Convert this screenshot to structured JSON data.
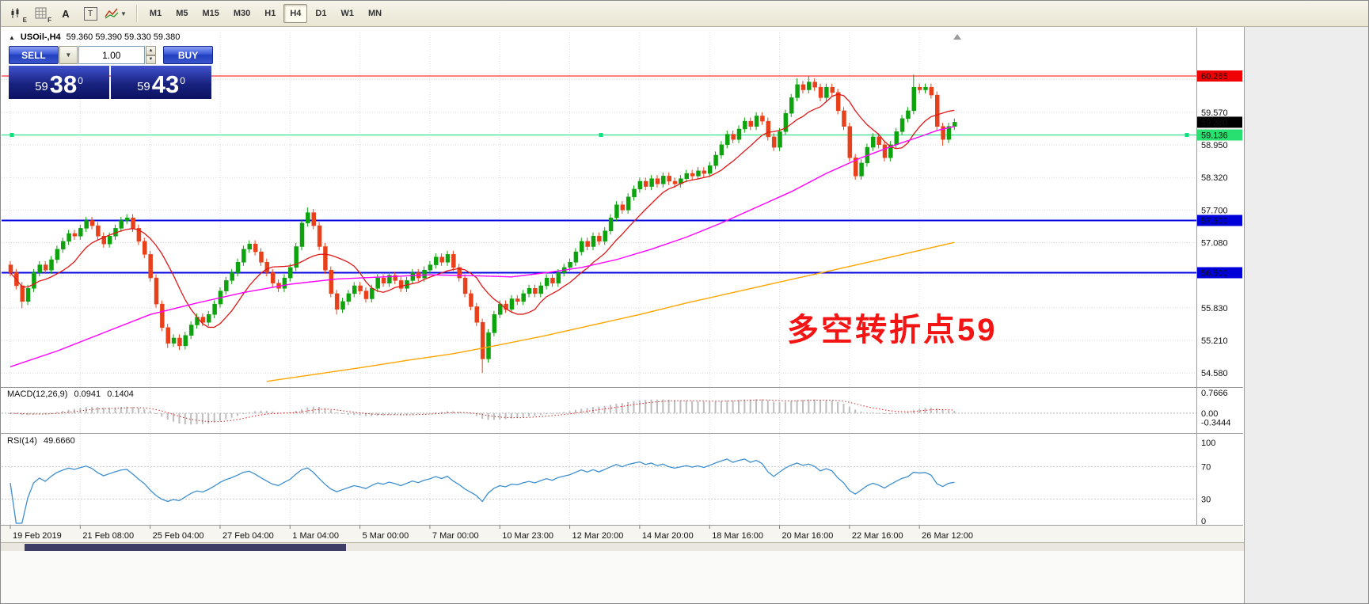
{
  "toolbar": {
    "icon_badges": {
      "e": "E",
      "f": "F",
      "a": "A",
      "t": "T"
    },
    "timeframes": [
      "M1",
      "M5",
      "M15",
      "M30",
      "H1",
      "H4",
      "D1",
      "W1",
      "MN"
    ],
    "active_timeframe": "H4"
  },
  "symbol_bar": {
    "symbol": "USOil-,H4",
    "ohlc": "59.360 59.390 59.330 59.380"
  },
  "trade_panel": {
    "sell_label": "SELL",
    "buy_label": "BUY",
    "volume": "1.00",
    "sell_price_small": "59",
    "sell_price_big": "38",
    "sell_price_sup": "0",
    "buy_price_small": "59",
    "buy_price_big": "43",
    "buy_price_sup": "0"
  },
  "annotation": {
    "text": "多空转折点59",
    "color": "#f31414"
  },
  "indicator_labels": {
    "macd_title": "MACD(12,26,9)",
    "macd_main": "0.0941",
    "macd_signal": "0.1404",
    "rsi_title": "RSI(14)",
    "rsi_value": "49.6660"
  },
  "chart_data": {
    "type": "candlestick",
    "symbol": "USOil-",
    "timeframe": "H4",
    "current_ohlc": {
      "open": 59.36,
      "high": 59.39,
      "low": 59.33,
      "close": 59.38
    },
    "candle_up": "#0da30d",
    "candle_down": "#e8401a",
    "y_axis_ticks": [
      {
        "label": "59.570",
        "value": 59.57
      },
      {
        "label": "58.950",
        "value": 58.946
      },
      {
        "label": "58.320",
        "value": 58.322
      },
      {
        "label": "57.700",
        "value": 57.699
      },
      {
        "label": "57.080",
        "value": 57.075
      },
      {
        "label": "55.830",
        "value": 55.828
      },
      {
        "label": "55.210",
        "value": 55.204
      },
      {
        "label": "54.580",
        "value": 54.58
      }
    ],
    "grid_values": [
      60.194,
      59.57,
      58.946,
      58.322,
      57.699,
      57.075,
      56.451,
      55.828,
      55.204,
      54.58
    ],
    "price_tags": [
      {
        "label": "60.265",
        "value": 60.265,
        "bg": "#f00000",
        "fg": "#ffffff"
      },
      {
        "label": "59.380",
        "value": 59.38,
        "bg": "#000000",
        "fg": "#ffffff"
      },
      {
        "label": "59.136",
        "value": 59.136,
        "bg": "#28e070",
        "fg": "#043a1c"
      },
      {
        "label": "57.500",
        "value": 57.5,
        "bg": "#0000d8",
        "fg": "#ffffff"
      },
      {
        "label": "56.500",
        "value": 56.5,
        "bg": "#0000d8",
        "fg": "#ffffff"
      }
    ],
    "levels": [
      {
        "value": 60.265,
        "color": "#ff0000",
        "width": 1,
        "selected": false
      },
      {
        "value": 59.136,
        "color": "#0be27e",
        "width": 1,
        "selected": true
      },
      {
        "value": 57.5,
        "color": "#0000e0",
        "width": 2,
        "selected": false
      },
      {
        "value": 56.5,
        "color": "#0000e0",
        "width": 2,
        "selected": false
      }
    ],
    "x_labels": [
      {
        "i": 0,
        "label": "19 Feb 2019"
      },
      {
        "i": 12,
        "label": "21 Feb 08:00"
      },
      {
        "i": 24,
        "label": "25 Feb 04:00"
      },
      {
        "i": 36,
        "label": "27 Feb 04:00"
      },
      {
        "i": 48,
        "label": "1 Mar 04:00"
      },
      {
        "i": 60,
        "label": "5 Mar 00:00"
      },
      {
        "i": 72,
        "label": "7 Mar 00:00"
      },
      {
        "i": 84,
        "label": "10 Mar 23:00"
      },
      {
        "i": 96,
        "label": "12 Mar 20:00"
      },
      {
        "i": 108,
        "label": "14 Mar 20:00"
      },
      {
        "i": 120,
        "label": "18 Mar 16:00"
      },
      {
        "i": 132,
        "label": "20 Mar 16:00"
      },
      {
        "i": 144,
        "label": "22 Mar 16:00"
      },
      {
        "i": 156,
        "label": "26 Mar 12:00"
      }
    ],
    "first_open": 56.65,
    "wick_margin": 0.07,
    "closes": [
      56.5,
      56.25,
      55.95,
      56.2,
      56.5,
      56.65,
      56.55,
      56.75,
      56.95,
      57.1,
      57.25,
      57.2,
      57.35,
      57.5,
      57.4,
      57.2,
      57.05,
      57.2,
      57.35,
      57.5,
      57.55,
      57.35,
      57.1,
      56.85,
      56.4,
      55.9,
      55.45,
      55.15,
      55.25,
      55.1,
      55.3,
      55.5,
      55.65,
      55.55,
      55.7,
      55.9,
      56.15,
      56.35,
      56.5,
      56.7,
      56.95,
      57.05,
      56.9,
      56.7,
      56.5,
      56.3,
      56.2,
      56.4,
      56.6,
      57.0,
      57.45,
      57.65,
      57.4,
      57.0,
      56.55,
      56.1,
      55.8,
      55.95,
      56.1,
      56.25,
      56.15,
      56.0,
      56.2,
      56.4,
      56.3,
      56.45,
      56.35,
      56.2,
      56.35,
      56.5,
      56.4,
      56.55,
      56.65,
      56.8,
      56.7,
      56.85,
      56.6,
      56.4,
      56.1,
      55.85,
      55.55,
      54.85,
      55.35,
      55.7,
      55.9,
      55.8,
      56.0,
      55.95,
      56.1,
      56.2,
      56.1,
      56.25,
      56.4,
      56.3,
      56.5,
      56.6,
      56.7,
      56.9,
      57.1,
      57.0,
      57.2,
      57.1,
      57.3,
      57.55,
      57.8,
      57.7,
      57.95,
      58.1,
      58.25,
      58.15,
      58.3,
      58.2,
      58.35,
      58.25,
      58.2,
      58.3,
      58.4,
      58.35,
      58.45,
      58.4,
      58.55,
      58.75,
      58.95,
      59.15,
      59.05,
      59.25,
      59.4,
      59.3,
      59.5,
      59.4,
      59.1,
      58.9,
      59.2,
      59.55,
      59.85,
      60.1,
      60.0,
      60.15,
      60.05,
      59.85,
      60.05,
      59.95,
      59.6,
      59.3,
      58.7,
      58.35,
      58.6,
      58.9,
      59.1,
      58.95,
      58.7,
      58.95,
      59.2,
      59.45,
      59.6,
      60.05,
      60.0,
      60.05,
      59.9,
      59.3,
      59.05,
      59.3,
      59.38
    ],
    "wick_overrides": {
      "2": {
        "low": 55.82
      },
      "20": {
        "high": 57.62
      },
      "27": {
        "low": 55.06
      },
      "29": {
        "low": 55.02
      },
      "51": {
        "high": 57.75
      },
      "56": {
        "low": 55.7
      },
      "81": {
        "low": 54.58
      },
      "135": {
        "high": 60.22
      },
      "137": {
        "high": 60.26
      },
      "155": {
        "high": 60.29
      },
      "160": {
        "low": 58.93
      }
    },
    "ma_fast": {
      "period": 10,
      "color": "#e01818"
    },
    "ma_mid": {
      "color": "#ff00ff",
      "points": [
        [
          0,
          54.7
        ],
        [
          8,
          55.0
        ],
        [
          16,
          55.35
        ],
        [
          24,
          55.7
        ],
        [
          32,
          55.92
        ],
        [
          40,
          56.12
        ],
        [
          48,
          56.28
        ],
        [
          56,
          56.38
        ],
        [
          64,
          56.42
        ],
        [
          72,
          56.46
        ],
        [
          80,
          56.44
        ],
        [
          86,
          56.42
        ],
        [
          92,
          56.5
        ],
        [
          98,
          56.6
        ],
        [
          104,
          56.75
        ],
        [
          110,
          56.95
        ],
        [
          116,
          57.18
        ],
        [
          122,
          57.45
        ],
        [
          128,
          57.75
        ],
        [
          134,
          58.05
        ],
        [
          140,
          58.4
        ],
        [
          146,
          58.7
        ],
        [
          152,
          58.95
        ],
        [
          156,
          59.1
        ],
        [
          159,
          59.22
        ],
        [
          162,
          59.3
        ]
      ]
    },
    "ma_slow": {
      "color": "#ffa500",
      "points": [
        [
          44,
          54.42
        ],
        [
          52,
          54.55
        ],
        [
          60,
          54.68
        ],
        [
          68,
          54.82
        ],
        [
          76,
          54.95
        ],
        [
          84,
          55.12
        ],
        [
          92,
          55.3
        ],
        [
          100,
          55.5
        ],
        [
          108,
          55.7
        ],
        [
          116,
          55.92
        ],
        [
          124,
          56.12
        ],
        [
          132,
          56.32
        ],
        [
          140,
          56.52
        ],
        [
          148,
          56.72
        ],
        [
          155,
          56.9
        ],
        [
          162,
          57.08
        ]
      ]
    },
    "macd": {
      "fast": 12,
      "slow": 26,
      "signal": 9,
      "hist_color": "#bdbdbd",
      "signal_color": "#e02020",
      "axis": [
        {
          "label": "0.7666",
          "value": 0.7666
        },
        {
          "label": "0.00",
          "value": 0
        },
        {
          "label": "-0.3444",
          "value": -0.3444
        }
      ]
    },
    "rsi": {
      "period": 14,
      "color": "#3e8fd0",
      "levels": [
        70,
        30
      ],
      "axis": [
        {
          "label": "100",
          "value": 100
        },
        {
          "label": "70",
          "value": 70
        },
        {
          "label": "30",
          "value": 30
        },
        {
          "label": "0",
          "value": 0
        }
      ]
    }
  }
}
